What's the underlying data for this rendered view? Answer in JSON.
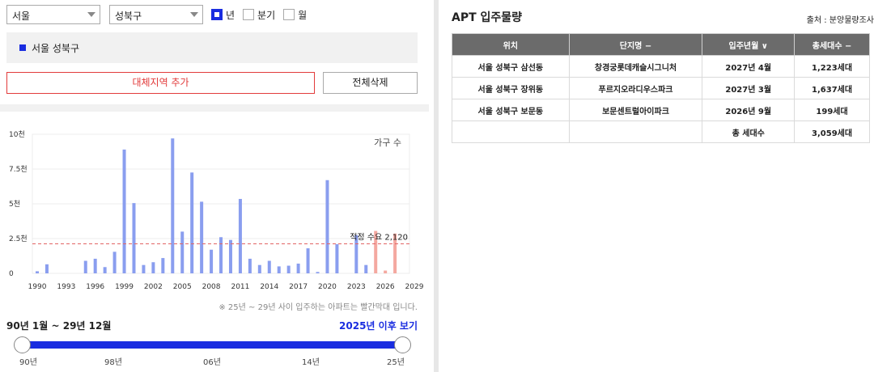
{
  "filters": {
    "city": "서울",
    "district": "성북구",
    "periods": [
      {
        "label": "년",
        "checked": true
      },
      {
        "label": "분기",
        "checked": false
      },
      {
        "label": "월",
        "checked": false
      }
    ]
  },
  "region": {
    "label": "서울 성북구"
  },
  "buttons": {
    "add_region": "대체지역 추가",
    "delete_all": "전체삭제"
  },
  "chart_data": {
    "type": "bar",
    "legend": "가구 수",
    "y_ticks": [
      "0",
      "2.5천",
      "5천",
      "7.5천",
      "10천"
    ],
    "ylim": [
      0,
      10000
    ],
    "x_ticks": [
      "1990",
      "1993",
      "1996",
      "1999",
      "2002",
      "2005",
      "2008",
      "2011",
      "2014",
      "2017",
      "2020",
      "2023",
      "2026",
      "2029"
    ],
    "xlim": [
      1990,
      2029
    ],
    "categories": [
      1990,
      1991,
      1992,
      1993,
      1994,
      1995,
      1996,
      1997,
      1998,
      1999,
      2000,
      2001,
      2002,
      2003,
      2004,
      2005,
      2006,
      2007,
      2008,
      2009,
      2010,
      2011,
      2012,
      2013,
      2014,
      2015,
      2016,
      2017,
      2018,
      2019,
      2020,
      2021,
      2022,
      2023,
      2024,
      2025,
      2026,
      2027,
      2028
    ],
    "values": [
      150,
      650,
      0,
      0,
      0,
      900,
      1050,
      450,
      1550,
      8900,
      5050,
      600,
      800,
      1100,
      9700,
      3000,
      7250,
      5150,
      1700,
      2600,
      2400,
      5350,
      1050,
      600,
      900,
      500,
      550,
      700,
      1800,
      100,
      6700,
      2100,
      0,
      2750,
      600,
      3050,
      199,
      2860,
      0
    ],
    "highlight_from": 2025,
    "colors": {
      "past": "#8a9eef",
      "future": "#f4a8a0",
      "reference": "#e26565"
    },
    "reference_line": {
      "value": 2120,
      "label": "적정 수요 2,120"
    },
    "note": "※ 25년 ~ 29년 사이 입주하는 아파트는 빨간막대 입니다."
  },
  "range": {
    "label": "90년 1월 ~ 29년 12월",
    "view_after": "2025년 이후 보기",
    "ticks": [
      "90년",
      "98년",
      "06년",
      "14년",
      "25년"
    ]
  },
  "apt": {
    "title": "APT 입주물량",
    "source": "출처 : 분양물량조사",
    "headers": [
      "위치",
      "단지명 −",
      "입주년월 ∨",
      "총세대수 −"
    ],
    "rows": [
      [
        "서울 성북구 삼선동",
        "창경궁롯데캐슬시그니처",
        "2027년 4월",
        "1,223세대"
      ],
      [
        "서울 성북구 장위동",
        "푸르지오라디우스파크",
        "2027년 3월",
        "1,637세대"
      ],
      [
        "서울 성북구 보문동",
        "보문센트럴아이파크",
        "2026년 9월",
        "199세대"
      ],
      [
        "",
        "",
        "총 세대수",
        "3,059세대"
      ]
    ]
  }
}
